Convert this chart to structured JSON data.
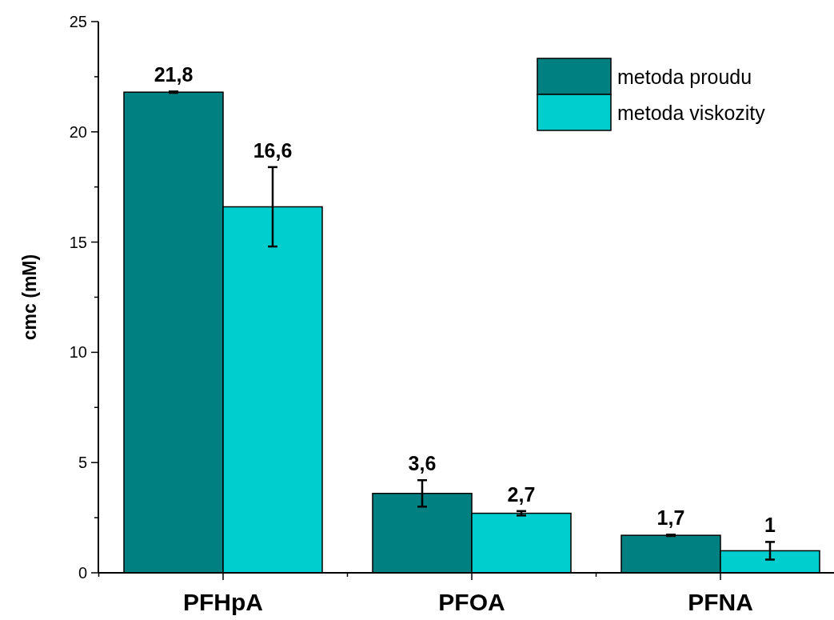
{
  "chart_data": {
    "type": "bar",
    "ylabel": "cmc (mM)",
    "categories": [
      "PFHpA",
      "PFOA",
      "PFNA"
    ],
    "series": [
      {
        "name": "metoda proudu",
        "color": "#008080",
        "values": [
          21.8,
          3.6,
          1.7
        ],
        "errors": [
          0.03,
          0.6,
          0.03
        ],
        "value_labels": [
          "21,8",
          "3,6",
          "1,7"
        ]
      },
      {
        "name": "metoda viskozity",
        "color": "#00cece",
        "values": [
          16.6,
          2.7,
          1
        ],
        "errors": [
          1.8,
          0.1,
          0.4
        ],
        "value_labels": [
          "16,6",
          "2,7",
          "1"
        ]
      }
    ],
    "ylim": [
      0,
      25
    ],
    "yticks": [
      0,
      {
        "value": 2.5,
        "label": null
      },
      5,
      {
        "value": 7.5,
        "label": null
      },
      10,
      {
        "value": 12.5,
        "label": null
      },
      15,
      {
        "value": 17.5,
        "label": null
      },
      20,
      {
        "value": 22.5,
        "label": null
      },
      25
    ],
    "legend": "top right",
    "grid": false
  }
}
